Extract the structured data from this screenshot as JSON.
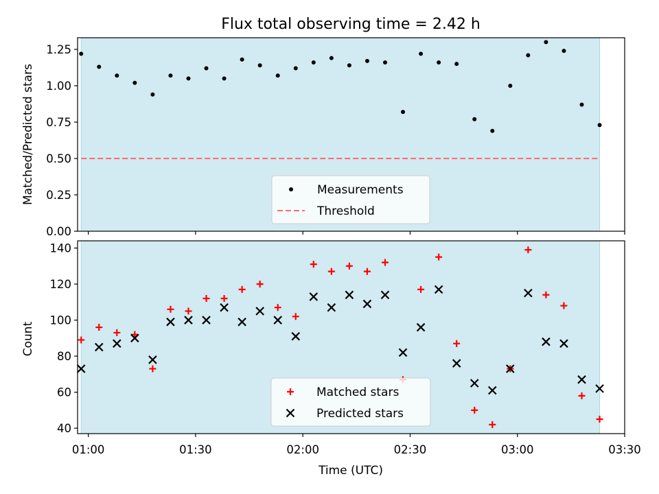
{
  "chart_data": [
    {
      "type": "scatter",
      "title": "Flux total observing time = 2.42 h",
      "xlabel": "",
      "ylabel": "Matched/Predicted stars",
      "x_unit": "time (UTC)",
      "xlim": [
        "00:57",
        "03:30"
      ],
      "ylim": [
        0,
        1.33
      ],
      "yticks": [
        0,
        0.25,
        0.5,
        0.75,
        1.0,
        1.25
      ],
      "ytick_labels": [
        "0.00",
        "0.25",
        "0.50",
        "0.75",
        "1.00",
        "1.25"
      ],
      "xticks": [
        "01:00",
        "01:30",
        "02:00",
        "02:30",
        "03:00",
        "03:30"
      ],
      "show_xtick_labels": false,
      "observing_window": [
        "00:58",
        "03:23"
      ],
      "x": [
        "00:58",
        "01:03",
        "01:08",
        "01:13",
        "01:18",
        "01:23",
        "01:28",
        "01:33",
        "01:38",
        "01:43",
        "01:48",
        "01:53",
        "01:58",
        "02:03",
        "02:08",
        "02:13",
        "02:18",
        "02:23",
        "02:28",
        "02:33",
        "02:38",
        "02:43",
        "02:48",
        "02:53",
        "02:58",
        "03:03",
        "03:08",
        "03:13",
        "03:18",
        "03:23"
      ],
      "series": [
        {
          "name": "Measurements",
          "marker": "dot",
          "color": "#000000",
          "values": [
            1.22,
            1.13,
            1.07,
            1.02,
            0.94,
            1.07,
            1.05,
            1.12,
            1.05,
            1.18,
            1.14,
            1.07,
            1.12,
            1.16,
            1.19,
            1.14,
            1.17,
            1.16,
            0.82,
            1.22,
            1.16,
            1.15,
            0.77,
            0.69,
            1.0,
            1.21,
            1.3,
            1.24,
            0.87,
            0.73
          ]
        },
        {
          "name": "Threshold",
          "marker": "dashed-line",
          "color": "#ff6b6b",
          "values": [
            0.5
          ]
        }
      ],
      "legend": [
        "Measurements",
        "Threshold"
      ],
      "legend_position": "bottom-center",
      "grid": false
    },
    {
      "type": "scatter",
      "title": "",
      "xlabel": "Time (UTC)",
      "ylabel": "Count",
      "x_unit": "time (UTC)",
      "xlim": [
        "00:57",
        "03:30"
      ],
      "ylim": [
        37,
        144
      ],
      "yticks": [
        40,
        60,
        80,
        100,
        120,
        140
      ],
      "ytick_labels": [
        "40",
        "60",
        "80",
        "100",
        "120",
        "140"
      ],
      "xticks": [
        "01:00",
        "01:30",
        "02:00",
        "02:30",
        "03:00",
        "03:30"
      ],
      "show_xtick_labels": true,
      "observing_window": [
        "00:58",
        "03:23"
      ],
      "x": [
        "00:58",
        "01:03",
        "01:08",
        "01:13",
        "01:18",
        "01:23",
        "01:28",
        "01:33",
        "01:38",
        "01:43",
        "01:48",
        "01:53",
        "01:58",
        "02:03",
        "02:08",
        "02:13",
        "02:18",
        "02:23",
        "02:28",
        "02:33",
        "02:38",
        "02:43",
        "02:48",
        "02:53",
        "02:58",
        "03:03",
        "03:08",
        "03:13",
        "03:18",
        "03:23"
      ],
      "series": [
        {
          "name": "Matched stars",
          "marker": "plus",
          "color": "#ff0000",
          "values": [
            89,
            96,
            93,
            92,
            73,
            106,
            105,
            112,
            112,
            117,
            120,
            107,
            102,
            131,
            127,
            130,
            127,
            132,
            67,
            117,
            135,
            87,
            50,
            42,
            73,
            139,
            114,
            108,
            58,
            45
          ]
        },
        {
          "name": "Predicted stars",
          "marker": "x",
          "color": "#000000",
          "values": [
            73,
            85,
            87,
            90,
            78,
            99,
            100,
            100,
            107,
            99,
            105,
            100,
            91,
            113,
            107,
            114,
            109,
            114,
            82,
            96,
            117,
            76,
            65,
            61,
            73,
            115,
            88,
            87,
            67,
            62
          ]
        }
      ],
      "legend": [
        "Matched stars",
        "Predicted stars"
      ],
      "legend_position": "bottom-center",
      "grid": false
    }
  ],
  "style": {
    "shade_color": "#add8e6",
    "axis_color": "#000000",
    "legend_bg": "#ffffff"
  }
}
